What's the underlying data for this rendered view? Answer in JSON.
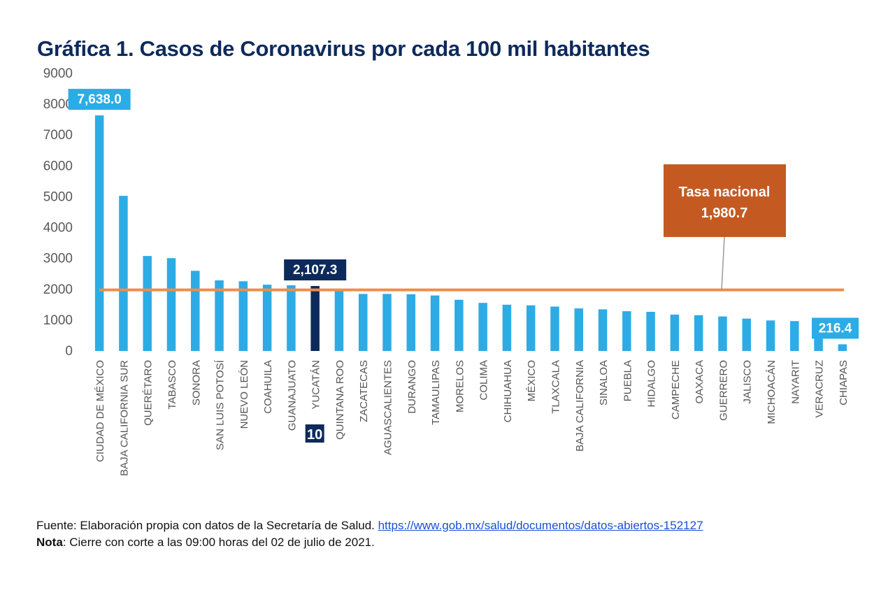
{
  "chart_data": {
    "type": "bar",
    "title": "Gráfica 1. Casos de Coronavirus por cada 100 mil habitantes",
    "xlabel": "",
    "ylabel": "",
    "ylim": [
      0,
      9000
    ],
    "yticks": [
      0,
      1000,
      2000,
      3000,
      4000,
      5000,
      6000,
      7000,
      8000,
      9000
    ],
    "grid": false,
    "categories": [
      "CIUDAD DE MÉXICO",
      "BAJA CALIFORNIA SUR",
      "QUERÉTARO",
      "TABASCO",
      "SONORA",
      "SAN LUIS POTOSÍ",
      "NUEVO LEÓN",
      "COAHUILA",
      "GUANAJUATO",
      "YUCATÁN",
      "QUINTANA ROO",
      "ZACATECAS",
      "AGUASCALIENTES",
      "DURANGO",
      "TAMAULIPAS",
      "MORELOS",
      "COLIMA",
      "CHIHUAHUA",
      "MÉXICO",
      "TLAXCALA",
      "BAJA CALIFORNIA",
      "SINALOA",
      "PUEBLA",
      "HIDALGO",
      "CAMPECHE",
      "OAXACA",
      "GUERRERO",
      "JALISCO",
      "MICHOACÁN",
      "NAYARIT",
      "VERACRUZ",
      "CHIAPAS"
    ],
    "values": [
      7638.0,
      5030,
      3080,
      3010,
      2600,
      2290,
      2260,
      2150,
      2130,
      2107.3,
      1950,
      1850,
      1850,
      1840,
      1800,
      1660,
      1560,
      1500,
      1480,
      1440,
      1380,
      1350,
      1290,
      1270,
      1180,
      1160,
      1120,
      1050,
      990,
      970,
      820,
      216.4
    ],
    "highlight_index": 9,
    "colors": {
      "bar": "#2cace6",
      "highlight": "#0d2a5c",
      "reference_line": "#ef8c4c",
      "callout": "#c45a22",
      "label_bg": "#2cace6",
      "title": "#0d2a5c"
    },
    "annotations": [
      {
        "category": "CIUDAD DE MÉXICO",
        "text": "7,638.0"
      },
      {
        "category": "YUCATÁN",
        "text": "2,107.3"
      },
      {
        "category": "CHIAPAS",
        "text": "216.4"
      }
    ],
    "rank_badge": {
      "category": "YUCATÁN",
      "text": "10"
    },
    "reference_line": {
      "value": 1980.7,
      "label_line1": "Tasa nacional",
      "label_line2": "1,980.7"
    }
  },
  "footer": {
    "source_prefix": "Fuente: Elaboración propia con datos de la Secretaría de Salud. ",
    "source_link": "https://www.gob.mx/salud/documentos/datos-abiertos-152127",
    "note_label": "Nota",
    "note_text": ": Cierre con corte a las 09:00 horas del 02 de julio de 2021."
  }
}
